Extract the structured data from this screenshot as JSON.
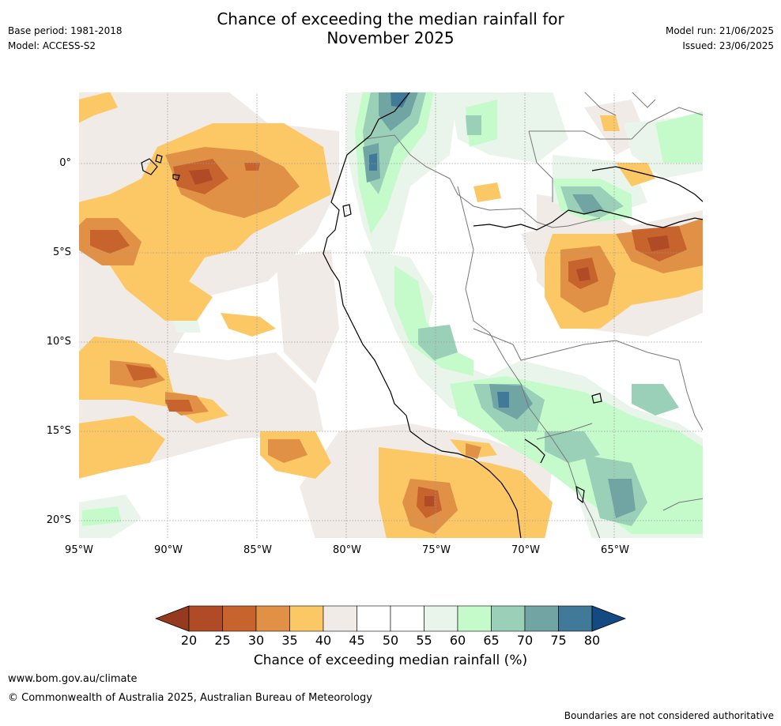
{
  "title": {
    "line1": "Chance of exceeding the median rainfall for",
    "line2": "November 2025"
  },
  "meta": {
    "base_period": "Base period: 1981-2018",
    "model": "Model: ACCESS-S2",
    "model_run": "Model run: 21/06/2025",
    "issued": "Issued: 23/06/2025"
  },
  "axes": {
    "lat_labels": [
      "0°",
      "5°S",
      "10°S",
      "15°S",
      "20°S"
    ],
    "lon_labels": [
      "95°W",
      "90°W",
      "85°W",
      "80°W",
      "75°W",
      "70°W",
      "65°W"
    ],
    "lat_values": [
      0,
      -5,
      -10,
      -15,
      -20
    ],
    "lon_values": [
      -95,
      -90,
      -85,
      -80,
      -75,
      -70,
      -65
    ],
    "extent": {
      "lon_min": -95,
      "lon_max": -60,
      "lat_min": -21,
      "lat_max": 4
    },
    "gridlines": true
  },
  "colorbar": {
    "ticks": [
      "20",
      "25",
      "30",
      "35",
      "40",
      "45",
      "50",
      "55",
      "60",
      "65",
      "70",
      "75",
      "80"
    ],
    "colors": [
      "#b14a26",
      "#c7632d",
      "#e09145",
      "#fcc866",
      "#f0ebe6",
      "#ffffff",
      "#ffffff",
      "#e9f5ea",
      "#c5fbcb",
      "#9bd0b8",
      "#70a5a4",
      "#417998"
    ],
    "under_color": "#953a1e",
    "over_color": "#144a82",
    "label": "Chance of exceeding median rainfall (%)"
  },
  "footer": {
    "url": "www.bom.gov.au/climate",
    "copyright": "© Commonwealth of Australia 2025, Australian Bureau of Meteorology",
    "note": "Boundaries are not considered authoritative"
  }
}
